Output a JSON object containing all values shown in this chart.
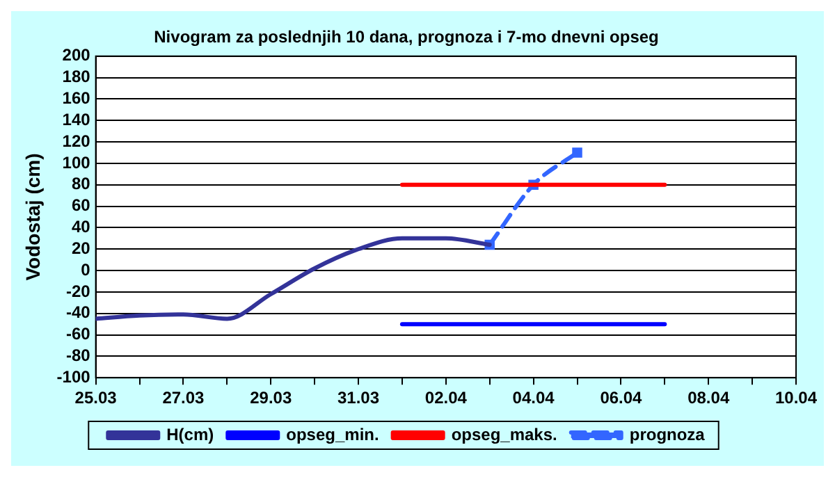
{
  "chart_data": {
    "type": "line",
    "title": "Nivogram za poslednjih 10 dana, prognoza i 7-mo dnevni opseg",
    "ylabel": "Vodostaj (cm)",
    "xlim": [
      "--03-25",
      "--04-10"
    ],
    "ylim": [
      -100,
      200
    ],
    "xticks": [
      {
        "value": "--03-25",
        "label": "25.03"
      },
      {
        "value": "--03-26",
        "label": null
      },
      {
        "value": "--03-27",
        "label": "27.03"
      },
      {
        "value": "--03-28",
        "label": null
      },
      {
        "value": "--03-29",
        "label": "29.03"
      },
      {
        "value": "--03-30",
        "label": null
      },
      {
        "value": "--03-31",
        "label": "31.03"
      },
      {
        "value": "--04-01",
        "label": null
      },
      {
        "value": "--04-02",
        "label": "02.04"
      },
      {
        "value": "--04-03",
        "label": null
      },
      {
        "value": "--04-04",
        "label": "04.04"
      },
      {
        "value": "--04-05",
        "label": null
      },
      {
        "value": "--04-06",
        "label": "06.04"
      },
      {
        "value": "--04-07",
        "label": null
      },
      {
        "value": "--04-08",
        "label": "08.04"
      },
      {
        "value": "--04-09",
        "label": null
      },
      {
        "value": "--04-10",
        "label": "10.04"
      }
    ],
    "yticks": [
      -100,
      -80,
      -60,
      -40,
      -20,
      0,
      20,
      40,
      60,
      80,
      100,
      120,
      140,
      160,
      180,
      200
    ],
    "grid": "y",
    "legend": "bottom",
    "series": [
      {
        "name": "H(cm)",
        "color": "#333399",
        "line_style": "solid",
        "marker": "none",
        "x": [
          "--03-25",
          "--03-26",
          "--03-27",
          "--03-28",
          "--03-29",
          "--03-30",
          "--03-31",
          "--04-01",
          "--04-02",
          "--04-03"
        ],
        "values": [
          -45,
          -42,
          -41,
          -45,
          -22,
          2,
          20,
          30,
          30,
          24
        ]
      },
      {
        "name": "opseg_min.",
        "color": "#0000ff",
        "line_style": "solid",
        "marker": "none",
        "x": [
          "--04-01",
          "--04-07"
        ],
        "values": [
          -50,
          -50
        ]
      },
      {
        "name": "opseg_maks.",
        "color": "#ff0000",
        "line_style": "solid",
        "marker": "none",
        "x": [
          "--04-01",
          "--04-07"
        ],
        "values": [
          80,
          80
        ]
      },
      {
        "name": "prognoza",
        "color": "#3366ff",
        "line_style": "dashed",
        "marker": "square",
        "x": [
          "--04-03",
          "--04-04",
          "--04-05"
        ],
        "values": [
          24,
          80,
          110
        ]
      }
    ]
  }
}
